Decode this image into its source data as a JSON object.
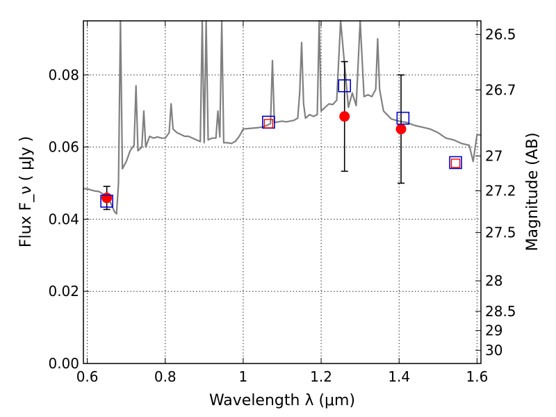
{
  "chart_data": {
    "type": "scatter",
    "xlabel": "Wavelength  λ (μm)",
    "ylabel": "Flux  F_ν  ( μJy )",
    "y2label": "Magnitude (AB)",
    "xlim": [
      0.59,
      1.61
    ],
    "ylim": [
      0.0,
      0.095
    ],
    "x_ticks": [
      "0.6",
      "0.8",
      "1",
      "1.2",
      "1.4",
      "1.6"
    ],
    "x_tick_values": [
      0.6,
      0.8,
      1.0,
      1.2,
      1.4,
      1.6
    ],
    "y_ticks": [
      "0.00",
      "0.02",
      "0.04",
      "0.06",
      "0.08"
    ],
    "y_tick_values": [
      0.0,
      0.02,
      0.04,
      0.06,
      0.08
    ],
    "mag_ticks": [
      "26.5",
      "26.7",
      "27",
      "27.2",
      "27.5",
      "28",
      "28.5",
      "29",
      "30"
    ],
    "mag_tick_values": [
      26.5,
      26.7,
      27.0,
      27.2,
      27.5,
      28.0,
      28.5,
      29.0,
      30.0
    ],
    "grid": true,
    "colors": {
      "model": "#808080",
      "observed": "#ff0000",
      "model_box": "#0000cc",
      "model_box_inner": "#ff0000",
      "errorbar": "#000000"
    },
    "observed": [
      {
        "x": 0.65,
        "y": 0.0459,
        "yerr": 0.0032
      },
      {
        "x": 1.26,
        "y": 0.0685,
        "yerr": 0.0152
      },
      {
        "x": 1.405,
        "y": 0.065,
        "yerr": 0.015
      }
    ],
    "model_photometry": [
      {
        "x": 0.65,
        "y": 0.045
      },
      {
        "x": 1.065,
        "y": 0.0669
      },
      {
        "x": 1.26,
        "y": 0.077
      },
      {
        "x": 1.41,
        "y": 0.068
      },
      {
        "x": 1.545,
        "y": 0.0557
      }
    ],
    "model_photometry_inner": [
      {
        "x": 1.065,
        "y": 0.0665
      },
      {
        "x": 1.545,
        "y": 0.0555
      }
    ],
    "model_spectrum": {
      "x": [
        0.59,
        0.6,
        0.61,
        0.62,
        0.63,
        0.64,
        0.65,
        0.66,
        0.67,
        0.675,
        0.68,
        0.685,
        0.69,
        0.7,
        0.71,
        0.72,
        0.725,
        0.73,
        0.74,
        0.745,
        0.75,
        0.76,
        0.77,
        0.78,
        0.79,
        0.8,
        0.81,
        0.815,
        0.82,
        0.83,
        0.84,
        0.85,
        0.86,
        0.87,
        0.88,
        0.89,
        0.895,
        0.9,
        0.905,
        0.91,
        0.92,
        0.93,
        0.935,
        0.94,
        0.945,
        0.95,
        0.96,
        0.97,
        0.98,
        0.99,
        1.0,
        1.02,
        1.04,
        1.05,
        1.06,
        1.07,
        1.075,
        1.08,
        1.09,
        1.1,
        1.11,
        1.12,
        1.13,
        1.14,
        1.145,
        1.15,
        1.155,
        1.16,
        1.17,
        1.18,
        1.19,
        1.195,
        1.2,
        1.21,
        1.22,
        1.23,
        1.24,
        1.25,
        1.27,
        1.28,
        1.29,
        1.3,
        1.31,
        1.32,
        1.33,
        1.34,
        1.345,
        1.35,
        1.36,
        1.38,
        1.4,
        1.42,
        1.44,
        1.46,
        1.48,
        1.5,
        1.52,
        1.54,
        1.56,
        1.58,
        1.59,
        1.6,
        1.61
      ],
      "y": [
        0.0485,
        0.0484,
        0.0481,
        0.0478,
        0.0477,
        0.047,
        0.0466,
        0.0445,
        0.042,
        0.0415,
        0.05,
        0.095,
        0.054,
        0.056,
        0.059,
        0.0605,
        0.077,
        0.059,
        0.06,
        0.07,
        0.06,
        0.063,
        0.0625,
        0.0628,
        0.0625,
        0.0625,
        0.064,
        0.072,
        0.065,
        0.064,
        0.0635,
        0.063,
        0.063,
        0.0625,
        0.062,
        0.0615,
        0.095,
        0.0612,
        0.095,
        0.062,
        0.0625,
        0.0625,
        0.07,
        0.0628,
        0.095,
        0.0612,
        0.0612,
        0.061,
        0.0616,
        0.063,
        0.065,
        0.0652,
        0.0654,
        0.0656,
        0.066,
        0.0665,
        0.084,
        0.0668,
        0.067,
        0.0672,
        0.067,
        0.0672,
        0.0674,
        0.068,
        0.075,
        0.089,
        0.072,
        0.068,
        0.069,
        0.0685,
        0.069,
        0.095,
        0.07,
        0.071,
        0.072,
        0.0718,
        0.073,
        0.095,
        0.071,
        0.075,
        0.0715,
        0.095,
        0.074,
        0.0745,
        0.074,
        0.076,
        0.09,
        0.076,
        0.07,
        0.0678,
        0.0672,
        0.0668,
        0.066,
        0.0655,
        0.065,
        0.064,
        0.0625,
        0.062,
        0.061,
        0.0605,
        0.056,
        0.0635,
        0.0633
      ]
    }
  }
}
